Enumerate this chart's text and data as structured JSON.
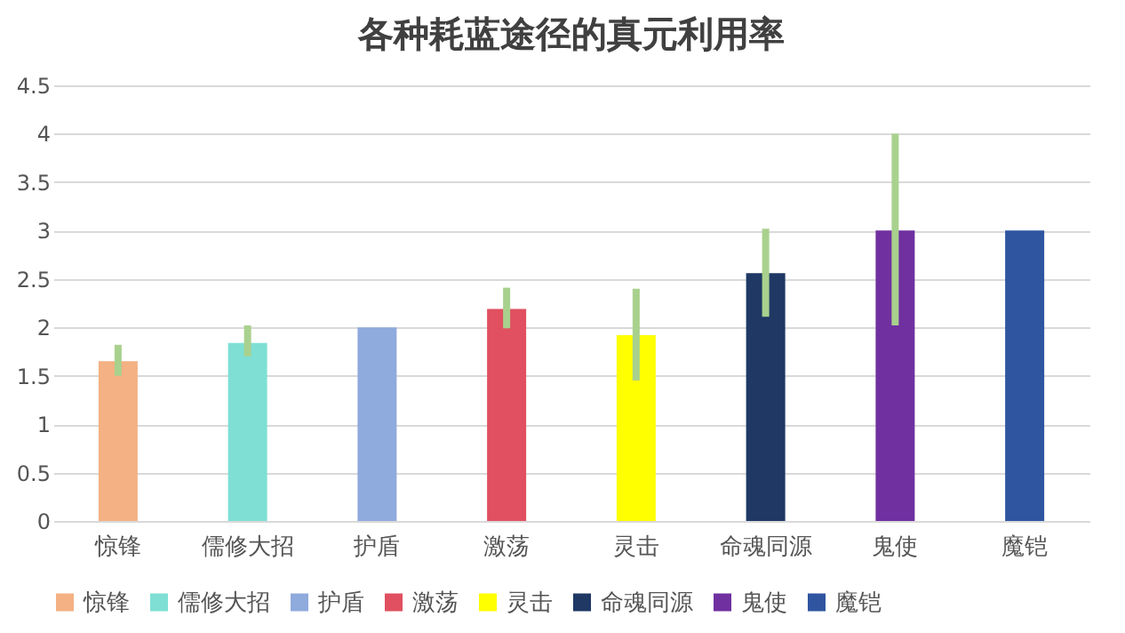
{
  "chart_data": {
    "type": "bar",
    "title": "各种耗蓝途径的真元利用率",
    "categories": [
      "惊锋",
      "儒修大招",
      "护盾",
      "激荡",
      "灵击",
      "命魂同源",
      "鬼使",
      "魔铠"
    ],
    "series": [
      {
        "name": "惊锋",
        "color": "#f4b183",
        "values": [
          1.65,
          null,
          null,
          null,
          null,
          null,
          null,
          null
        ],
        "errors": [
          [
            1.5,
            1.82
          ],
          null,
          null,
          null,
          null,
          null,
          null,
          null
        ]
      },
      {
        "name": "儒修大招",
        "color": "#7fdfd4",
        "values": [
          null,
          1.84,
          null,
          null,
          null,
          null,
          null,
          null
        ],
        "errors": [
          null,
          [
            1.7,
            2.02
          ],
          null,
          null,
          null,
          null,
          null,
          null
        ]
      },
      {
        "name": "护盾",
        "color": "#8faadc",
        "values": [
          null,
          null,
          2.0,
          null,
          null,
          null,
          null,
          null
        ],
        "errors": [
          null,
          null,
          [
            2.0,
            2.0
          ],
          null,
          null,
          null,
          null,
          null
        ]
      },
      {
        "name": "激荡",
        "color": "#e05060",
        "values": [
          null,
          null,
          null,
          2.19,
          null,
          null,
          null,
          null
        ],
        "errors": [
          null,
          null,
          null,
          [
            1.99,
            2.41
          ],
          null,
          null,
          null,
          null
        ]
      },
      {
        "name": "灵击",
        "color": "#ffff00",
        "values": [
          null,
          null,
          null,
          null,
          1.92,
          null,
          null,
          null
        ],
        "errors": [
          null,
          null,
          null,
          null,
          [
            1.45,
            2.4
          ],
          null,
          null,
          null
        ]
      },
      {
        "name": "命魂同源",
        "color": "#1f3864",
        "values": [
          null,
          null,
          null,
          null,
          null,
          2.56,
          null,
          null
        ],
        "errors": [
          null,
          null,
          null,
          null,
          null,
          [
            2.11,
            3.02
          ],
          null,
          null
        ]
      },
      {
        "name": "鬼使",
        "color": "#7030a0",
        "values": [
          null,
          null,
          null,
          null,
          null,
          null,
          3.0,
          null
        ],
        "errors": [
          null,
          null,
          null,
          null,
          null,
          null,
          [
            2.02,
            4.0
          ],
          null
        ]
      },
      {
        "name": "魔铠",
        "color": "#2f55a0",
        "values": [
          null,
          null,
          null,
          null,
          null,
          null,
          null,
          3.0
        ],
        "errors": [
          null,
          null,
          null,
          null,
          null,
          null,
          null,
          [
            3.0,
            3.0
          ]
        ]
      }
    ],
    "ylim": [
      0,
      4.5
    ],
    "yticks": [
      0,
      0.5,
      1,
      1.5,
      2,
      2.5,
      3,
      3.5,
      4,
      4.5
    ],
    "grid": "y",
    "legend": "bottom"
  }
}
